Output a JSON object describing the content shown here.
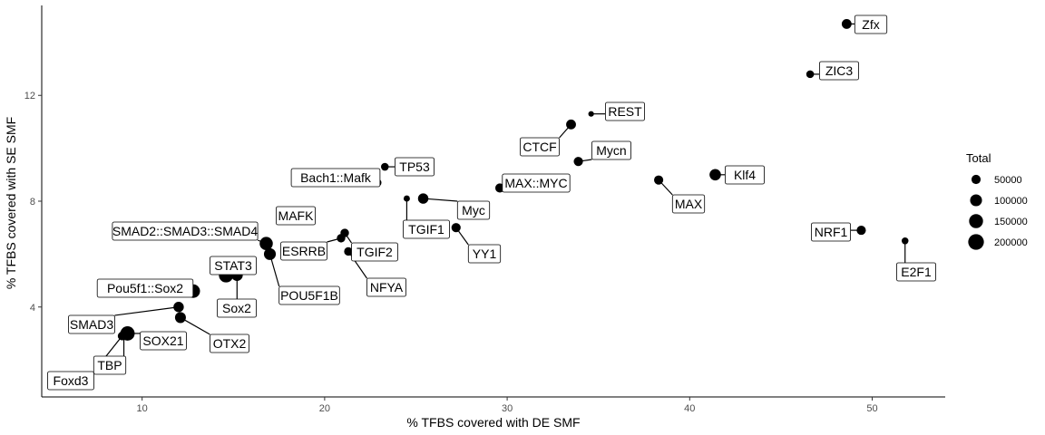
{
  "chart_data": {
    "type": "scatter",
    "xlabel": "% TFBS covered with DE SMF",
    "ylabel": "% TFBS covered with SE SMF",
    "xlim": [
      4.5,
      54
    ],
    "ylim": [
      0.6,
      15.4
    ],
    "x_ticks": [
      10,
      20,
      30,
      40,
      50
    ],
    "y_ticks": [
      4,
      8,
      12
    ],
    "grid": false,
    "legend": {
      "title": "Total",
      "position": "right",
      "entries": [
        {
          "label": "50000",
          "value": 50000
        },
        {
          "label": "100000",
          "value": 100000
        },
        {
          "label": "150000",
          "value": 150000
        },
        {
          "label": "200000",
          "value": 200000
        }
      ]
    },
    "size_range": [
      0,
      220000
    ],
    "points": [
      {
        "name": "Zfx",
        "x": 48.6,
        "y": 14.7,
        "total": 60000
      },
      {
        "name": "ZIC3",
        "x": 46.6,
        "y": 12.8,
        "total": 30000
      },
      {
        "name": "REST",
        "x": 34.6,
        "y": 11.3,
        "total": 10000
      },
      {
        "name": "CTCF",
        "x": 33.5,
        "y": 10.9,
        "total": 60000
      },
      {
        "name": "Mycn",
        "x": 33.9,
        "y": 9.5,
        "total": 50000
      },
      {
        "name": "MAX::MYC",
        "x": 29.6,
        "y": 8.5,
        "total": 50000
      },
      {
        "name": "Klf4",
        "x": 41.4,
        "y": 9.0,
        "total": 90000
      },
      {
        "name": "MAX",
        "x": 38.3,
        "y": 8.8,
        "total": 50000
      },
      {
        "name": "TP53",
        "x": 23.3,
        "y": 9.3,
        "total": 30000
      },
      {
        "name": "Bach1::Mafk",
        "x": 22.9,
        "y": 8.7,
        "total": 30000
      },
      {
        "name": "Myc",
        "x": 25.4,
        "y": 8.1,
        "total": 70000
      },
      {
        "name": "TGIF1",
        "x": 24.5,
        "y": 8.1,
        "total": 15000
      },
      {
        "name": "YY1",
        "x": 27.2,
        "y": 7.0,
        "total": 50000
      },
      {
        "name": "MAFK",
        "x": 18.5,
        "y": 7.3,
        "total": 50000
      },
      {
        "name": "NRF1",
        "x": 49.4,
        "y": 6.9,
        "total": 50000
      },
      {
        "name": "E2F1",
        "x": 51.8,
        "y": 6.5,
        "total": 20000
      },
      {
        "name": "TGIF2",
        "x": 21.1,
        "y": 6.8,
        "total": 40000
      },
      {
        "name": "ESRRB",
        "x": 20.9,
        "y": 6.6,
        "total": 40000
      },
      {
        "name": "NFYA",
        "x": 21.3,
        "y": 6.1,
        "total": 40000
      },
      {
        "name": "SMAD2::SMAD3::SMAD4",
        "x": 16.8,
        "y": 6.4,
        "total": 130000
      },
      {
        "name": "POU5F1B",
        "x": 17.0,
        "y": 6.0,
        "total": 100000
      },
      {
        "name": "STAT3",
        "x": 14.6,
        "y": 5.2,
        "total": 160000
      },
      {
        "name": "Sox2",
        "x": 15.2,
        "y": 5.2,
        "total": 90000
      },
      {
        "name": "Pou5f1::Sox2",
        "x": 12.8,
        "y": 4.6,
        "total": 140000
      },
      {
        "name": "SMAD3",
        "x": 12.0,
        "y": 4.0,
        "total": 70000
      },
      {
        "name": "OTX2",
        "x": 12.1,
        "y": 3.6,
        "total": 80000
      },
      {
        "name": "SOX21",
        "x": 9.2,
        "y": 3.0,
        "total": 160000
      },
      {
        "name": "TBP",
        "x": 9.0,
        "y": 3.0,
        "total": 30000
      },
      {
        "name": "Foxd3",
        "x": 8.9,
        "y": 2.9,
        "total": 40000
      }
    ]
  }
}
